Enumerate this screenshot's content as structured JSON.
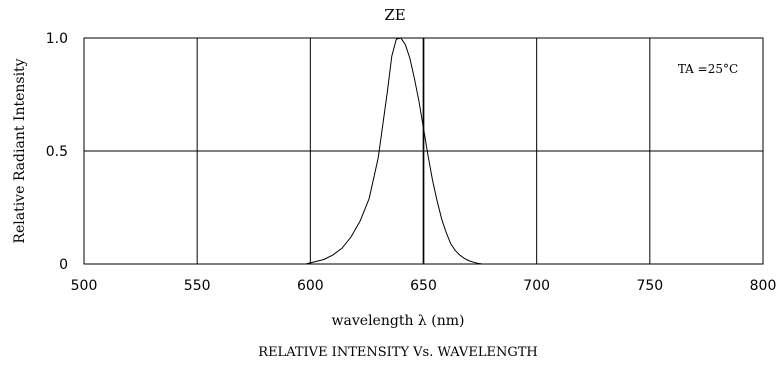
{
  "chart_data": {
    "type": "line",
    "title": "ZE",
    "xlabel": "wavelength λ (nm)",
    "ylabel": "Relative Radiant Intensity",
    "caption": "RELATIVE INTENSITY Vs. WAVELENGTH",
    "annotation": "TA =25°C",
    "xlim": [
      500,
      800
    ],
    "ylim": [
      0,
      1.0
    ],
    "x_ticks": [
      500,
      550,
      600,
      650,
      700,
      750,
      800
    ],
    "x_tick_labels": [
      "500",
      "550",
      "600",
      "650",
      "700",
      "750",
      "800"
    ],
    "y_ticks": [
      0,
      0.5,
      1.0
    ],
    "y_tick_labels": [
      "0",
      "0.5",
      "1.0"
    ],
    "grid": true,
    "series": [
      {
        "x": [
          598,
          602,
          606,
          610,
          614,
          618,
          622,
          626,
          630,
          634,
          636,
          638,
          640,
          642,
          644,
          646,
          648,
          650,
          652,
          654,
          656,
          658,
          660,
          662,
          664,
          666,
          668,
          670,
          672,
          674,
          676
        ],
        "y": [
          0,
          0.01,
          0.02,
          0.04,
          0.07,
          0.12,
          0.19,
          0.29,
          0.47,
          0.76,
          0.92,
          0.995,
          1.0,
          0.97,
          0.91,
          0.82,
          0.72,
          0.6,
          0.48,
          0.37,
          0.28,
          0.2,
          0.14,
          0.09,
          0.06,
          0.04,
          0.025,
          0.015,
          0.008,
          0.003,
          0
        ]
      }
    ]
  }
}
